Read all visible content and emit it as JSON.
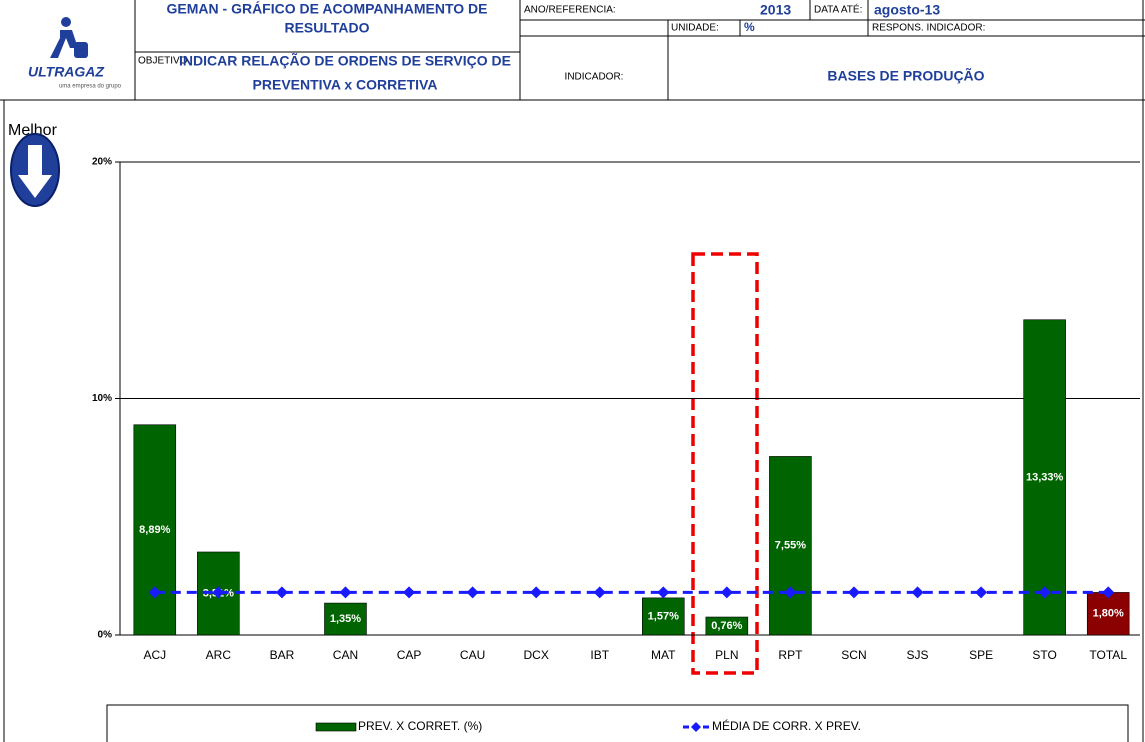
{
  "header": {
    "logo": "ULTRAGAZ",
    "logo_tagline": "uma empresa do grupo",
    "title_line1": "GEMAN - GRÁFICO DE ACOMPANHAMENTO DE",
    "title_line2": "RESULTADO",
    "objective_label": "OBJETIVO",
    "objective_line1": "INDICAR RELAÇÃO DE ORDENS DE SERVIÇO DE",
    "objective_line2": "PREVENTIVA x CORRETIVA",
    "year_label": "ANO/REFERENCIA:",
    "year": "2013",
    "date_label": "DATA ATÉ:",
    "date": "agosto-13",
    "unit_label": "UNIDADE:",
    "unit": "%",
    "owner_label": "RESPONS. INDICADOR:",
    "indicator_label": "INDICADOR:",
    "indicator": "BASES DE PRODUÇÃO"
  },
  "better_label": "Melhor",
  "chart_data": {
    "type": "bar",
    "categories": [
      "ACJ",
      "ARC",
      "BAR",
      "CAN",
      "CAP",
      "CAU",
      "DCX",
      "IBT",
      "MAT",
      "PLN",
      "RPT",
      "SCN",
      "SJS",
      "SPE",
      "STO",
      "TOTAL"
    ],
    "series": [
      {
        "name": "PREV. X CORRET. (%)",
        "type": "bar",
        "color": "#006400",
        "colors": [
          "#006400",
          "#006400",
          "#006400",
          "#006400",
          "#006400",
          "#006400",
          "#006400",
          "#006400",
          "#006400",
          "#006400",
          "#006400",
          "#006400",
          "#006400",
          "#006400",
          "#006400",
          "#8b0000"
        ],
        "values": [
          8.89,
          3.51,
          0,
          1.35,
          0,
          0,
          0,
          0,
          1.57,
          0.76,
          7.55,
          0,
          0,
          0,
          13.33,
          1.8
        ],
        "value_labels": [
          "8,89%",
          "3,51%",
          null,
          "1,35%",
          null,
          null,
          null,
          null,
          "1,57%",
          "0,76%",
          "7,55%",
          null,
          null,
          null,
          "13,33%",
          "1,80%"
        ]
      },
      {
        "name": "MÉDIA DE CORR. X PREV.",
        "type": "line",
        "color": "#1a1aff",
        "values": [
          1.8,
          1.8,
          1.8,
          1.8,
          1.8,
          1.8,
          1.8,
          1.8,
          1.8,
          1.8,
          1.8,
          1.8,
          1.8,
          1.8,
          1.8,
          1.8
        ]
      }
    ],
    "ylim": [
      0,
      20
    ],
    "yticks": [
      {
        "value": 0,
        "label": "0%"
      },
      {
        "value": 10,
        "label": "10%"
      },
      {
        "value": 20,
        "label": "20%"
      }
    ],
    "grid": true
  }
}
